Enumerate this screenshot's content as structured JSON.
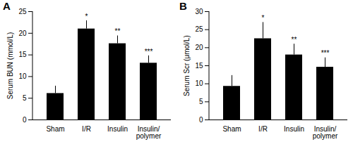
{
  "chart_data": [
    {
      "type": "bar",
      "title": "A",
      "categories": [
        "Sham",
        "I/R",
        "Insulin",
        "Insulin/\npolymer"
      ],
      "values": [
        6.1,
        21.0,
        17.6,
        13.1
      ],
      "errors": [
        1.7,
        1.9,
        1.8,
        1.7
      ],
      "color": "#000000",
      "y_label": "Serum BUN (mmol/L)",
      "ylim": [
        0,
        25
      ],
      "yticks": [
        0,
        5,
        10,
        15,
        20,
        25
      ],
      "annotations": [
        {
          "category": "I/R",
          "text": "*"
        },
        {
          "category": "Insulin",
          "text": "**"
        },
        {
          "category": "Insulin/\npolymer",
          "text": "***"
        }
      ],
      "grid": false
    },
    {
      "type": "bar",
      "title": "B",
      "categories": [
        "Sham",
        "I/R",
        "Insulin",
        "Insulin/\npolymer"
      ],
      "values": [
        9.3,
        22.5,
        18.0,
        14.6
      ],
      "errors": [
        3.0,
        4.5,
        3.0,
        2.6
      ],
      "color": "#000000",
      "y_label": "Serum Scr (μmol/L)",
      "ylim": [
        0,
        30
      ],
      "yticks": [
        0,
        5,
        10,
        15,
        20,
        25,
        30
      ],
      "annotations": [
        {
          "category": "I/R",
          "text": "*"
        },
        {
          "category": "Insulin",
          "text": "**"
        },
        {
          "category": "Insulin/\npolymer",
          "text": "***"
        }
      ],
      "grid": false
    }
  ]
}
